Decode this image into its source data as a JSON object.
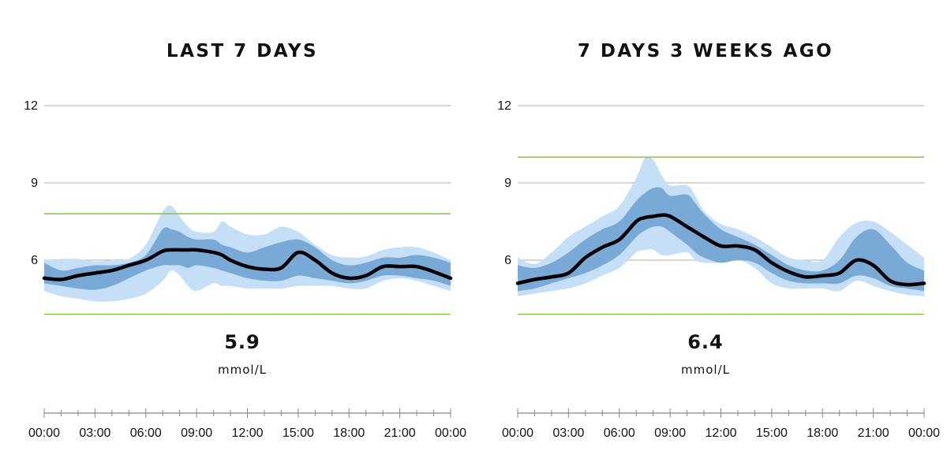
{
  "chart_data": [
    {
      "type": "area",
      "title": "LAST 7 DAYS",
      "average": "5.9",
      "unit": "mmol/L",
      "ylim": [
        3,
        12
      ],
      "yticks": [
        12,
        9,
        6
      ],
      "xtick_labels": [
        "00:00",
        "03:00",
        "06:00",
        "09:00",
        "12:00",
        "15:00",
        "18:00",
        "21:00",
        "00:00"
      ],
      "target_range": [
        3.9,
        7.8
      ],
      "x": [
        0,
        1,
        2,
        3,
        4,
        5,
        6,
        7,
        7.5,
        8,
        8.5,
        9,
        10,
        10.5,
        11,
        12,
        13,
        14,
        15,
        16,
        17,
        18,
        19,
        20,
        21,
        22,
        23,
        24
      ],
      "median": [
        5.3,
        5.25,
        5.4,
        5.5,
        5.6,
        5.8,
        6.0,
        6.35,
        6.4,
        6.4,
        6.4,
        6.4,
        6.3,
        6.2,
        6.0,
        5.75,
        5.65,
        5.7,
        6.3,
        6.0,
        5.5,
        5.3,
        5.4,
        5.75,
        5.75,
        5.75,
        5.55,
        5.3
      ],
      "inner_band": {
        "upper": [
          5.9,
          5.6,
          5.7,
          5.8,
          5.8,
          5.9,
          6.2,
          7.2,
          7.2,
          7.1,
          6.9,
          6.8,
          6.8,
          6.6,
          6.5,
          6.3,
          6.5,
          6.7,
          6.8,
          6.5,
          6.0,
          5.8,
          5.9,
          6.1,
          6.1,
          6.2,
          6.1,
          5.9
        ],
        "lower": [
          5.1,
          5.0,
          4.9,
          4.85,
          5.0,
          5.3,
          5.6,
          5.8,
          5.8,
          5.8,
          5.7,
          5.8,
          5.7,
          5.6,
          5.5,
          5.3,
          5.2,
          5.2,
          5.4,
          5.3,
          5.2,
          5.1,
          5.2,
          5.4,
          5.4,
          5.3,
          5.2,
          5.0
        ]
      },
      "outer_band": {
        "upper": [
          6.0,
          6.05,
          6.05,
          5.95,
          6.0,
          6.05,
          6.6,
          7.9,
          8.1,
          7.7,
          7.3,
          7.1,
          7.1,
          7.5,
          7.3,
          7.0,
          7.0,
          7.3,
          7.1,
          6.6,
          6.2,
          6.1,
          6.15,
          6.4,
          6.5,
          6.5,
          6.3,
          6.0
        ],
        "lower": [
          4.8,
          4.6,
          4.5,
          4.4,
          4.4,
          4.5,
          4.7,
          5.2,
          5.6,
          5.4,
          5.0,
          4.8,
          5.1,
          5.0,
          5.0,
          4.9,
          4.9,
          4.9,
          5.0,
          5.0,
          5.0,
          4.9,
          4.9,
          5.2,
          5.3,
          5.2,
          5.0,
          4.8
        ]
      }
    },
    {
      "type": "area",
      "title": "7 DAYS 3 WEEKS AGO",
      "average": "6.4",
      "unit": "mmol/L",
      "ylim": [
        3,
        12
      ],
      "yticks": [
        12,
        9,
        6
      ],
      "xtick_labels": [
        "00:00",
        "03:00",
        "06:00",
        "09:00",
        "12:00",
        "15:00",
        "18:00",
        "21:00",
        "00:00"
      ],
      "target_range": [
        3.9,
        10.0
      ],
      "x": [
        0,
        1,
        2,
        3,
        4,
        5,
        6,
        7,
        7.5,
        8,
        8.5,
        9,
        10,
        10.5,
        11,
        12,
        13,
        14,
        15,
        16,
        17,
        18,
        19,
        20,
        21,
        22,
        23,
        24
      ],
      "median": [
        5.1,
        5.25,
        5.35,
        5.5,
        6.1,
        6.5,
        6.8,
        7.5,
        7.65,
        7.7,
        7.75,
        7.7,
        7.3,
        7.1,
        6.9,
        6.55,
        6.55,
        6.4,
        5.9,
        5.55,
        5.35,
        5.4,
        5.5,
        6.0,
        5.8,
        5.2,
        5.05,
        5.1
      ],
      "inner_band": {
        "upper": [
          5.8,
          5.7,
          5.9,
          6.3,
          6.8,
          7.2,
          7.5,
          8.3,
          8.6,
          8.8,
          8.8,
          8.5,
          8.55,
          8.2,
          7.8,
          7.2,
          6.9,
          6.6,
          6.2,
          5.8,
          5.6,
          5.6,
          6.0,
          6.9,
          7.2,
          6.6,
          5.9,
          5.6
        ],
        "lower": [
          4.8,
          4.9,
          5.1,
          5.3,
          5.5,
          5.8,
          6.2,
          6.9,
          7.15,
          7.3,
          7.3,
          7.1,
          6.6,
          6.3,
          6.1,
          5.9,
          6.0,
          5.9,
          5.5,
          5.2,
          5.1,
          5.1,
          5.1,
          5.4,
          5.3,
          5.0,
          4.9,
          4.8
        ]
      },
      "outer_band": {
        "upper": [
          6.1,
          5.85,
          6.3,
          6.9,
          7.3,
          7.7,
          8.1,
          9.2,
          9.95,
          9.9,
          9.3,
          8.9,
          8.9,
          8.5,
          7.9,
          7.4,
          7.2,
          6.9,
          6.5,
          6.1,
          6.0,
          6.0,
          6.9,
          7.45,
          7.5,
          7.1,
          6.6,
          6.1
        ],
        "lower": [
          4.6,
          4.7,
          4.8,
          4.9,
          5.1,
          5.4,
          5.7,
          6.3,
          6.4,
          6.4,
          6.2,
          6.2,
          6.3,
          6.0,
          5.9,
          5.9,
          6.0,
          5.7,
          5.1,
          4.9,
          4.9,
          4.9,
          4.8,
          5.2,
          5.0,
          4.8,
          4.65,
          4.6
        ]
      }
    }
  ],
  "colors": {
    "outer_band": "#c5dff6",
    "inner_band": "#79aad6",
    "median": "#000000",
    "target_line": "#8cc63f",
    "grid": "#bdbdbd",
    "axis": "#888888"
  }
}
